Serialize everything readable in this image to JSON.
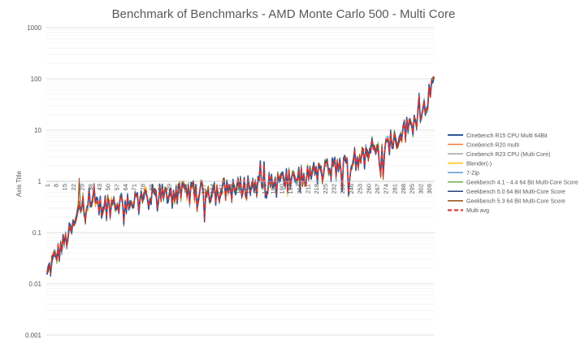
{
  "chart_data": {
    "type": "line",
    "title": "Benchmark of Benchmarks - AMD Monte Carlo 500 - Multi Core",
    "xlabel": "",
    "ylabel": "Axis Title",
    "yscale": "log",
    "ylim": [
      0.001,
      1000
    ],
    "y_ticks": [
      "0.001",
      "0.01",
      "0.1",
      "1",
      "10",
      "100",
      "1000"
    ],
    "grid": true,
    "legend_position": "right",
    "x_count": 313,
    "x_tick_labels": [
      "1",
      "8",
      "15",
      "22",
      "29",
      "36",
      "43",
      "50",
      "57",
      "64",
      "71",
      "78",
      "85",
      "92",
      "99",
      "106",
      "113",
      "120",
      "127",
      "134",
      "141",
      "148",
      "155",
      "162",
      "169",
      "176",
      "183",
      "190",
      "197",
      "204",
      "211",
      "218",
      "225",
      "232",
      "239",
      "246",
      "253",
      "260",
      "267",
      "274",
      "281",
      "288",
      "295",
      "302",
      "309"
    ],
    "trend_anchors": [
      [
        1,
        0.015
      ],
      [
        6,
        0.03
      ],
      [
        14,
        0.06
      ],
      [
        24,
        0.15
      ],
      [
        27,
        0.3
      ],
      [
        60,
        0.4
      ],
      [
        100,
        0.6
      ],
      [
        150,
        0.75
      ],
      [
        190,
        1.05
      ],
      [
        210,
        1.4
      ],
      [
        230,
        1.8
      ],
      [
        250,
        2.6
      ],
      [
        265,
        4.0
      ],
      [
        280,
        6.5
      ],
      [
        295,
        14
      ],
      [
        305,
        32
      ],
      [
        313,
        80
      ]
    ],
    "series": [
      {
        "name": "Cinebench R15 CPU Multi 64Bit",
        "color": "#2f5597",
        "width": 1.6,
        "dash": ""
      },
      {
        "name": "Cinebench R20 multi",
        "color": "#ed7d31",
        "width": 1.0,
        "dash": ""
      },
      {
        "name": "Cinebench R23 CPU (Multi Core)",
        "color": "#a5a5a5",
        "width": 1.0,
        "dash": ""
      },
      {
        "name": "Blender(-)",
        "color": "#ffc000",
        "width": 1.0,
        "dash": ""
      },
      {
        "name": "7-Zip",
        "color": "#5b9bd5",
        "width": 1.0,
        "dash": ""
      },
      {
        "name": "Geekbench 4.1 - 4.4 64 Bit Multi-Core Score",
        "color": "#70ad47",
        "width": 1.0,
        "dash": ""
      },
      {
        "name": "Geekbench 5.0 64 Bit Multi-Core Score",
        "color": "#264478",
        "width": 1.0,
        "dash": ""
      },
      {
        "name": "Geekbench 5.3 64 Bit Multi-Core Score",
        "color": "#9e480e",
        "width": 1.0,
        "dash": ""
      },
      {
        "name": "Multi avg",
        "color": "#e0322a",
        "width": 1.6,
        "dash": "5,3"
      }
    ]
  }
}
